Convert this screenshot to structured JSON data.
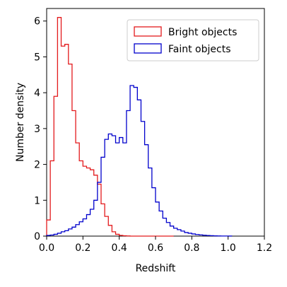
{
  "chart_data": {
    "type": "step-histogram",
    "xlabel": "Redshift",
    "ylabel": "Number density",
    "xlim": [
      0,
      1.2
    ],
    "ylim": [
      0,
      6.35
    ],
    "x_ticks": [
      "0.0",
      "0.2",
      "0.4",
      "0.6",
      "0.8",
      "1.0",
      "1.2"
    ],
    "y_ticks": [
      "0",
      "1",
      "2",
      "3",
      "4",
      "5",
      "6"
    ],
    "bin_width": 0.02,
    "grid": false,
    "legend_position": "top-right",
    "series": [
      {
        "name": "Bright objects",
        "color": "#e31a1c",
        "bins_start": 0.0,
        "values": [
          0.45,
          2.1,
          3.9,
          6.1,
          5.3,
          5.35,
          4.8,
          3.5,
          2.6,
          2.1,
          1.95,
          1.9,
          1.85,
          1.7,
          1.45,
          0.9,
          0.55,
          0.3,
          0.12,
          0.05,
          0.02,
          0.01,
          0.005,
          0.0,
          0.0,
          0.0,
          0.0,
          0.0,
          0.0,
          0.0,
          0.0,
          0.0,
          0.0,
          0.0,
          0.0
        ]
      },
      {
        "name": "Faint objects",
        "color": "#0000cc",
        "bins_start": 0.0,
        "values": [
          0.02,
          0.03,
          0.05,
          0.08,
          0.12,
          0.15,
          0.2,
          0.25,
          0.32,
          0.4,
          0.48,
          0.6,
          0.75,
          1.0,
          1.5,
          2.2,
          2.7,
          2.85,
          2.8,
          2.6,
          2.75,
          2.6,
          3.5,
          4.2,
          4.15,
          3.8,
          3.2,
          2.55,
          1.9,
          1.35,
          0.95,
          0.7,
          0.5,
          0.38,
          0.28,
          0.22,
          0.18,
          0.14,
          0.1,
          0.08,
          0.06,
          0.045,
          0.035,
          0.025,
          0.018,
          0.012,
          0.008,
          0.005,
          0.003,
          0.002,
          0.001
        ]
      }
    ]
  }
}
